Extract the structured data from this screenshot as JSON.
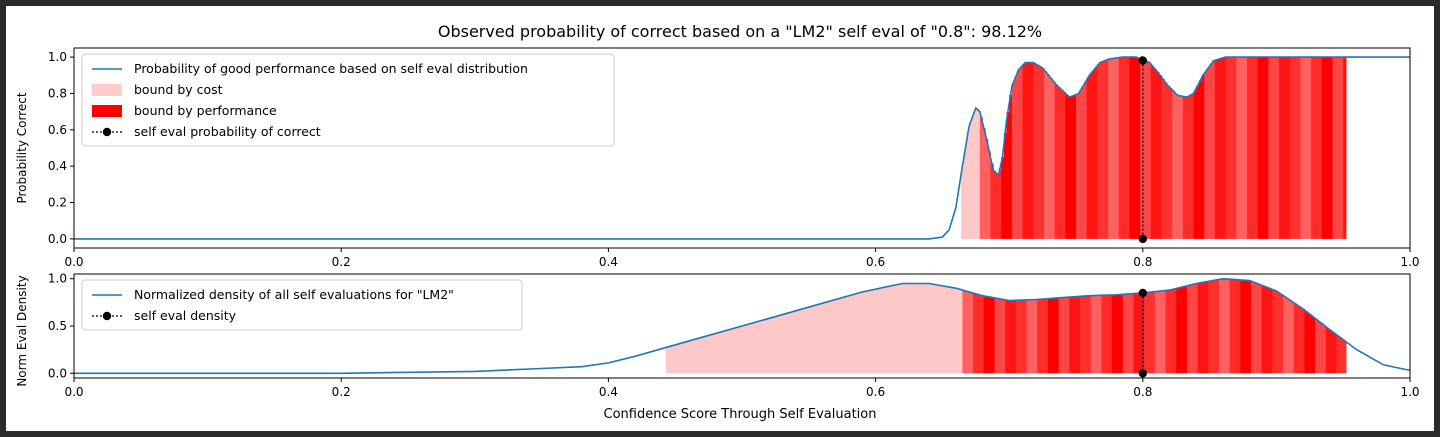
{
  "chart_data": [
    {
      "type": "area",
      "title": "Observed probability of correct based on a \"LM2\" self eval of \"0.8\": 98.12%",
      "xlabel": "",
      "ylabel": "Probability Correct",
      "xlim": [
        0.0,
        1.0
      ],
      "ylim": [
        -0.05,
        1.05
      ],
      "xticks": [
        "0.0",
        "0.2",
        "0.4",
        "0.6",
        "0.8",
        "1.0"
      ],
      "yticks": [
        "0.0",
        "0.2",
        "0.4",
        "0.6",
        "0.8",
        "1.0"
      ],
      "legend_position": "upper-left",
      "legend": [
        {
          "label": "Probability of good performance based on self eval distribution",
          "kind": "line",
          "color": "#1f77b4"
        },
        {
          "label": "bound by cost",
          "kind": "patch",
          "color": "#ffcccc"
        },
        {
          "label": "bound by performance",
          "kind": "patch",
          "color": "#ff0000"
        },
        {
          "label": "self eval probability of correct",
          "kind": "marker-line",
          "color": "#000000"
        }
      ],
      "series": [
        {
          "x": [
            0.0,
            0.6,
            0.64,
            0.65,
            0.655,
            0.66,
            0.665,
            0.67,
            0.675,
            0.678,
            0.683,
            0.688,
            0.692,
            0.695,
            0.698,
            0.702,
            0.707,
            0.712,
            0.718,
            0.725,
            0.735,
            0.745,
            0.752,
            0.76,
            0.768,
            0.775,
            0.785,
            0.795,
            0.805,
            0.812,
            0.818,
            0.826,
            0.833,
            0.838,
            0.845,
            0.853,
            0.862,
            0.875,
            0.95,
            1.0
          ],
          "y": [
            0.0,
            0.0,
            0.0,
            0.01,
            0.05,
            0.17,
            0.4,
            0.62,
            0.72,
            0.7,
            0.55,
            0.38,
            0.35,
            0.45,
            0.65,
            0.84,
            0.93,
            0.97,
            0.97,
            0.94,
            0.85,
            0.78,
            0.8,
            0.9,
            0.97,
            0.99,
            1.0,
            1.0,
            0.97,
            0.91,
            0.85,
            0.79,
            0.78,
            0.8,
            0.9,
            0.98,
            1.0,
            1.0,
            1.0,
            1.0
          ]
        }
      ],
      "shaded_region": {
        "x_start": 0.664,
        "x_end": 0.952,
        "cost_band_end": 0.678
      },
      "marker": {
        "x": 0.8,
        "y_top": 0.9812,
        "y_bottom": 0.0
      }
    },
    {
      "type": "area",
      "title": "",
      "xlabel": "Confidence Score Through Self Evaluation",
      "ylabel": "Norm Eval Density",
      "xlim": [
        0.0,
        1.0
      ],
      "ylim": [
        -0.05,
        1.05
      ],
      "xticks": [
        "0.0",
        "0.2",
        "0.4",
        "0.6",
        "0.8",
        "1.0"
      ],
      "yticks": [
        "0.0",
        "0.5",
        "1.0"
      ],
      "legend_position": "upper-left",
      "legend": [
        {
          "label": "Normalized density of all self evaluations for \"LM2\"",
          "kind": "line",
          "color": "#1f77b4"
        },
        {
          "label": "self eval density",
          "kind": "marker-line",
          "color": "#000000"
        }
      ],
      "series": [
        {
          "x": [
            0.0,
            0.2,
            0.3,
            0.35,
            0.38,
            0.4,
            0.42,
            0.44,
            0.47,
            0.5,
            0.53,
            0.56,
            0.59,
            0.62,
            0.64,
            0.66,
            0.68,
            0.7,
            0.72,
            0.74,
            0.76,
            0.78,
            0.8,
            0.82,
            0.84,
            0.86,
            0.88,
            0.9,
            0.92,
            0.94,
            0.96,
            0.98,
            1.0
          ],
          "y": [
            0.0,
            0.0,
            0.02,
            0.05,
            0.07,
            0.11,
            0.18,
            0.26,
            0.38,
            0.5,
            0.62,
            0.74,
            0.86,
            0.95,
            0.95,
            0.9,
            0.82,
            0.77,
            0.78,
            0.8,
            0.82,
            0.83,
            0.85,
            0.88,
            0.95,
            1.0,
            0.98,
            0.87,
            0.68,
            0.46,
            0.25,
            0.09,
            0.03
          ]
        }
      ],
      "shaded_region": {
        "x_start": 0.443,
        "x_end": 0.952,
        "cost_band_end": 0.664
      },
      "marker": {
        "x": 0.8,
        "y_top": 0.85,
        "y_bottom": 0.0
      }
    }
  ]
}
